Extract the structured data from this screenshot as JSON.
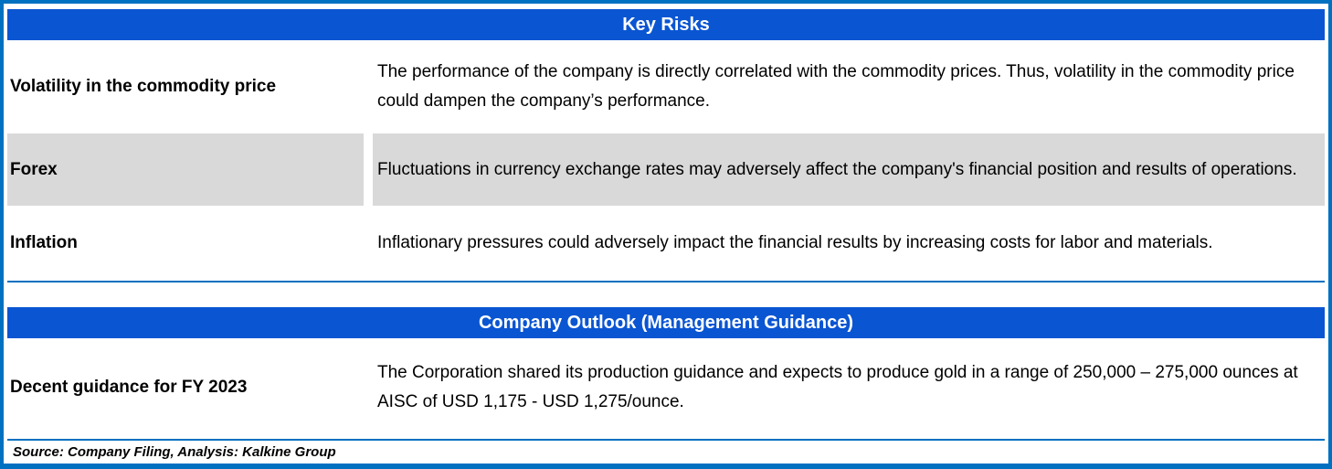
{
  "colors": {
    "header_blue": "#0a55d2",
    "border_blue": "#0070c0",
    "row_gray": "#d9d9d9",
    "text_black": "#000000",
    "header_text": "#ffffff"
  },
  "sections": [
    {
      "title": "Key Risks",
      "rows": [
        {
          "label": "Volatility in the commodity price",
          "description": "The performance of the company is directly correlated with the commodity prices. Thus, volatility in the commodity price could dampen the company’s performance."
        },
        {
          "label": "Forex",
          "description": "Fluctuations in currency exchange rates may adversely affect the company's financial position and results of operations."
        },
        {
          "label": "Inflation",
          "description": "Inflationary pressures could adversely impact the financial results by increasing costs for labor and materials."
        }
      ]
    },
    {
      "title": "Company Outlook (Management Guidance)",
      "rows": [
        {
          "label": "Decent guidance for FY 2023",
          "description": "The Corporation shared its production guidance and expects to produce gold in a range of 250,000 – 275,000 ounces at AISC of USD 1,175 - USD 1,275/ounce."
        }
      ]
    }
  ],
  "footer": {
    "source": "Source: Company Filing, Analysis: Kalkine Group"
  }
}
